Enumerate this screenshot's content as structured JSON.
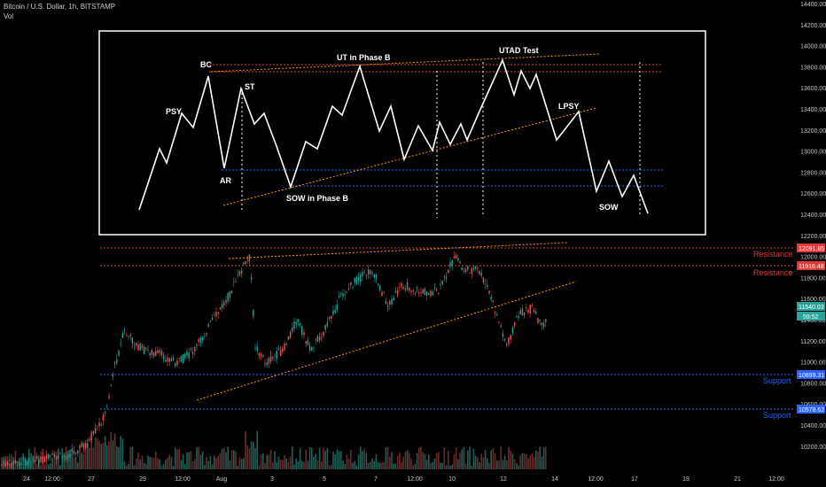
{
  "header": {
    "symbol": "Bitcoin / U.S. Dollar, 1h, BITSTAMP",
    "indicator": "Vol"
  },
  "price_axis": {
    "ticks": [
      "14400.00",
      "14200.00",
      "14000.00",
      "13800.00",
      "13600.00",
      "13400.00",
      "13200.00",
      "13000.00",
      "12800.00",
      "12600.00",
      "12400.00",
      "12200.00",
      "12000.00",
      "11800.00",
      "11600.00",
      "11400.00",
      "11200.00",
      "11000.00",
      "10800.00",
      "10600.00",
      "10400.00",
      "10200.00"
    ],
    "tags": {
      "resistance_1": "12091.85",
      "resistance_2": "11916.48",
      "last_price": "11540.03",
      "countdown": "59:52",
      "support_1": "10899.31",
      "support_2": "10578.62"
    }
  },
  "time_axis": {
    "labels": [
      "24",
      "12:00",
      "27",
      "29",
      "12:00",
      "Aug",
      "3",
      "5",
      "7",
      "12:00",
      "10",
      "12",
      "14",
      "12:00",
      "17",
      "19",
      "21",
      "12:00"
    ]
  },
  "levels": {
    "resistance_label": "Resistance",
    "support_label": "Support"
  },
  "wyckoff_diagram": {
    "labels": {
      "psy": "PSY",
      "bc": "BC",
      "ar": "AR",
      "st": "ST",
      "sow_phase_b": "SOW in Phase B",
      "ut_phase_b": "UT in Phase B",
      "utad_test": "UTAD Test",
      "lpsy": "LPSY",
      "sow": "SOW"
    }
  },
  "colors": {
    "background": "#000000",
    "resistance": "#e53935",
    "support": "#2962ff",
    "trendline": "#ff9800",
    "bullish": "#26a69a",
    "bearish": "#ef5350",
    "last_price": "#26a69a"
  }
}
